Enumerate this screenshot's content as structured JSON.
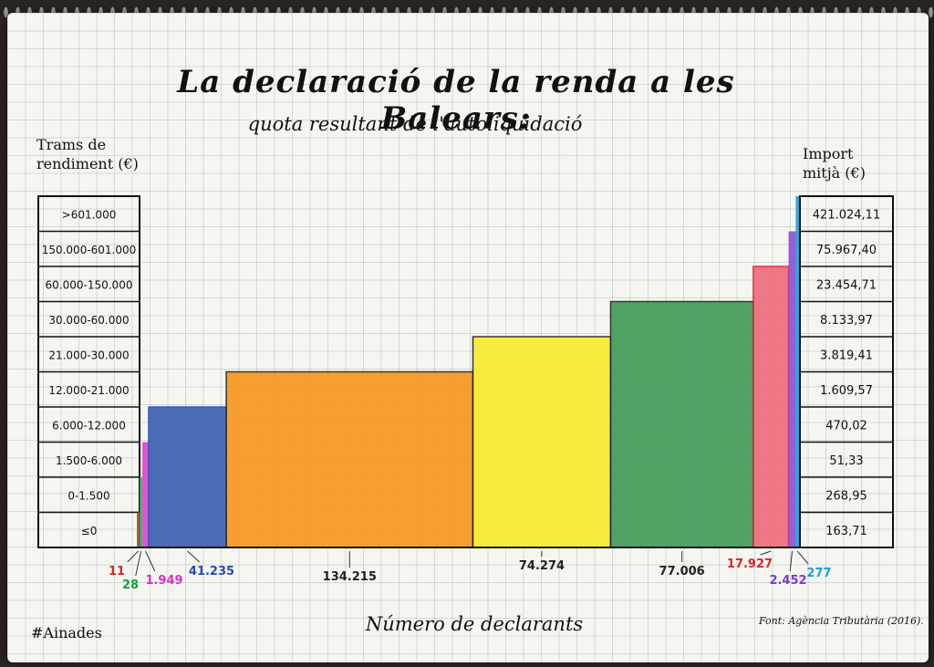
{
  "chart_data": {
    "type": "bar",
    "title": "La declaració de la renda a les Balears:",
    "subtitle": "quota resultant de l'autoliquidació",
    "left_axis_label": [
      "Trams de",
      "rendiment (€)"
    ],
    "right_axis_label": [
      "Import",
      "mitjà (€)"
    ],
    "xlabel": "Número de declarants",
    "categories": [
      "≤0",
      "0-1.500",
      "1.500-6.000",
      "6.000-12.000",
      "12.000-21.000",
      "21.000-30.000",
      "30.000-60.000",
      "60.000-150.000",
      "150.000-601.000",
      ">601.000"
    ],
    "declarants": [
      11,
      28,
      1949,
      41235,
      134215,
      74274,
      77006,
      17927,
      2452,
      277
    ],
    "declarants_labels": [
      "11",
      "28",
      "1.949",
      "41.235",
      "134.215",
      "74.274",
      "77.006",
      "17.927",
      "2.452",
      "277"
    ],
    "import_mitja": [
      163.71,
      268.95,
      51.33,
      470.02,
      1609.57,
      3819.41,
      8133.97,
      23454.71,
      75967.4,
      421024.11
    ],
    "import_mitja_labels": [
      "163,71",
      "268,95",
      "51,33",
      "470,02",
      "1.609,57",
      "3.819,41",
      "8.133,97",
      "23.454,71",
      "75.967,40",
      "421.024,11"
    ],
    "colors": [
      "#a0522d",
      "#3aa860",
      "#e040c8",
      "#3a5fb0",
      "#f7951e",
      "#f8ec2a",
      "#3f9a56",
      "#f06a7a",
      "#8a4fd6",
      "#1a9fd6"
    ],
    "label_colors": [
      "#d8242c",
      "#18a040",
      "#d630c4",
      "#2a48b8",
      "#222222",
      "#222222",
      "#222222",
      "#d8242c",
      "#7a3ad0",
      "#1a9fd6"
    ],
    "bar_heights_rank": [
      1,
      2,
      3,
      4,
      5,
      6,
      7,
      8,
      9,
      10
    ]
  },
  "footer": {
    "hashtag": "#Ainades",
    "source": "Font: Agència Tributària (2016)."
  }
}
